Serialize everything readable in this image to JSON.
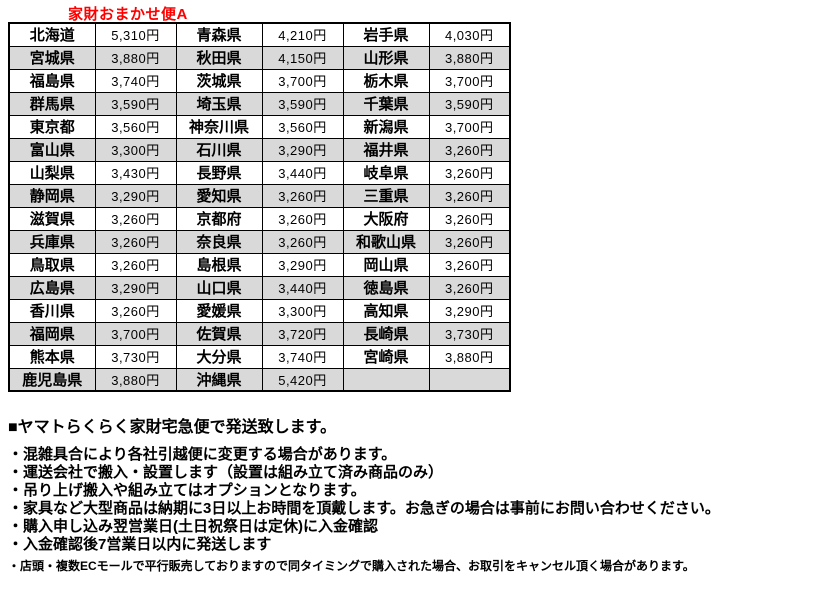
{
  "title": "家財おまかせ便A",
  "colors": {
    "title_red": "#ff0000",
    "row_shade": "#d9d9d9",
    "border": "#000000"
  },
  "table": {
    "columns": [
      "prefecture",
      "price",
      "prefecture",
      "price",
      "prefecture",
      "price"
    ],
    "rows": [
      {
        "shaded": false,
        "cells": [
          "北海道",
          "5,310円",
          "青森県",
          "4,210円",
          "岩手県",
          "4,030円"
        ]
      },
      {
        "shaded": true,
        "cells": [
          "宮城県",
          "3,880円",
          "秋田県",
          "4,150円",
          "山形県",
          "3,880円"
        ]
      },
      {
        "shaded": false,
        "cells": [
          "福島県",
          "3,740円",
          "茨城県",
          "3,700円",
          "栃木県",
          "3,700円"
        ]
      },
      {
        "shaded": true,
        "cells": [
          "群馬県",
          "3,590円",
          "埼玉県",
          "3,590円",
          "千葉県",
          "3,590円"
        ]
      },
      {
        "shaded": false,
        "cells": [
          "東京都",
          "3,560円",
          "神奈川県",
          "3,560円",
          "新潟県",
          "3,700円"
        ]
      },
      {
        "shaded": true,
        "cells": [
          "富山県",
          "3,300円",
          "石川県",
          "3,290円",
          "福井県",
          "3,260円"
        ]
      },
      {
        "shaded": false,
        "cells": [
          "山梨県",
          "3,430円",
          "長野県",
          "3,440円",
          "岐阜県",
          "3,260円"
        ]
      },
      {
        "shaded": true,
        "cells": [
          "静岡県",
          "3,290円",
          "愛知県",
          "3,260円",
          "三重県",
          "3,260円"
        ]
      },
      {
        "shaded": false,
        "cells": [
          "滋賀県",
          "3,260円",
          "京都府",
          "3,260円",
          "大阪府",
          "3,260円"
        ]
      },
      {
        "shaded": true,
        "cells": [
          "兵庫県",
          "3,260円",
          "奈良県",
          "3,260円",
          "和歌山県",
          "3,260円"
        ]
      },
      {
        "shaded": false,
        "cells": [
          "鳥取県",
          "3,260円",
          "島根県",
          "3,290円",
          "岡山県",
          "3,260円"
        ]
      },
      {
        "shaded": true,
        "cells": [
          "広島県",
          "3,290円",
          "山口県",
          "3,440円",
          "徳島県",
          "3,260円"
        ]
      },
      {
        "shaded": false,
        "cells": [
          "香川県",
          "3,260円",
          "愛媛県",
          "3,300円",
          "高知県",
          "3,290円"
        ]
      },
      {
        "shaded": true,
        "cells": [
          "福岡県",
          "3,700円",
          "佐賀県",
          "3,720円",
          "長崎県",
          "3,730円"
        ]
      },
      {
        "shaded": false,
        "cells": [
          "熊本県",
          "3,730円",
          "大分県",
          "3,740円",
          "宮崎県",
          "3,880円"
        ]
      },
      {
        "shaded": true,
        "cells": [
          "鹿児島県",
          "3,880円",
          "沖縄県",
          "5,420円",
          "",
          ""
        ]
      }
    ]
  },
  "notes": {
    "heading": "■ヤマトらくらく家財宅急便で発送致します。",
    "bullets": [
      "・混雑具合により各社引越便に変更する場合があります。",
      "・運送会社で搬入・設置します（設置は組み立て済み商品のみ）",
      "・吊り上げ搬入や組み立てはオプションとなります。",
      "・家具など大型商品は納期に3日以上お時間を頂戴します。お急ぎの場合は事前にお問い合わせください。",
      "・購入申し込み翌営業日(土日祝祭日は定休)に入金確認",
      "・入金確認後7営業日以内に発送します"
    ],
    "footnote": "・店頭・複数ECモールで平行販売しておりますので同タイミングで購入された場合、お取引をキャンセル頂く場合があります。"
  }
}
